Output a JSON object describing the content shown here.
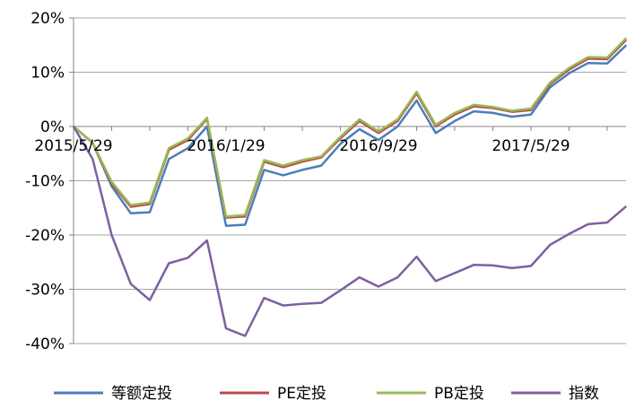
{
  "chart_data": {
    "type": "line",
    "title": "",
    "xlabel": "",
    "ylabel": "",
    "y_ticks": [
      "20%",
      "10%",
      "0%",
      "-10%",
      "-20%",
      "-30%",
      "-40%"
    ],
    "y_tick_values": [
      20,
      10,
      0,
      -10,
      -20,
      -30,
      -40
    ],
    "ylim": [
      -40,
      20
    ],
    "x_ticks": [
      {
        "label": "2015/5/29",
        "index": 0
      },
      {
        "label": "2016/1/29",
        "index": 8
      },
      {
        "label": "2016/9/29",
        "index": 16
      },
      {
        "label": "2017/5/29",
        "index": 24
      }
    ],
    "n_points": 30,
    "grid": "horizontal",
    "legend_position": "bottom",
    "series": [
      {
        "name": "等额定投",
        "color": "#4a7ebb",
        "values": [
          0,
          -3,
          -11,
          -16,
          -15.8,
          -6,
          -4,
          0,
          -18.3,
          -18.1,
          -8,
          -9,
          -8,
          -7.2,
          -3.2,
          -0.5,
          -2.5,
          0,
          4.8,
          -1.2,
          1,
          2.8,
          2.5,
          1.8,
          2.2,
          7.2,
          9.8,
          11.7,
          11.6,
          15
        ]
      },
      {
        "name": "PE定投",
        "color": "#be4b48",
        "values": [
          0,
          -3,
          -10.5,
          -14.8,
          -14.3,
          -4.3,
          -2.5,
          1.4,
          -16.8,
          -16.6,
          -6.5,
          -7.5,
          -6.5,
          -5.7,
          -2.2,
          1,
          -1.2,
          1,
          6.1,
          0,
          2.2,
          3.7,
          3.4,
          2.7,
          3,
          7.8,
          10.5,
          12.5,
          12.4,
          16
        ]
      },
      {
        "name": "PB定投",
        "color": "#98b954",
        "values": [
          0,
          -3,
          -10.2,
          -14.5,
          -14,
          -4,
          -2.2,
          1.6,
          -16.6,
          -16.3,
          -6.2,
          -7.2,
          -6.2,
          -5.5,
          -1.9,
          1.3,
          -0.9,
          1.3,
          6.4,
          0.3,
          2.5,
          4,
          3.6,
          2.9,
          3.3,
          8.1,
          10.8,
          12.8,
          12.7,
          16.3
        ]
      },
      {
        "name": "指数",
        "color": "#7d60a0",
        "values": [
          0,
          -6,
          -20,
          -29,
          -32,
          -25.2,
          -24.2,
          -21,
          -37.2,
          -38.6,
          -31.6,
          -33,
          -32.7,
          -32.5,
          -30.2,
          -27.8,
          -29.5,
          -27.8,
          -24,
          -28.5,
          -27,
          -25.5,
          -25.6,
          -26.1,
          -25.7,
          -21.8,
          -19.8,
          -18,
          -17.7,
          -14.7
        ]
      }
    ]
  }
}
